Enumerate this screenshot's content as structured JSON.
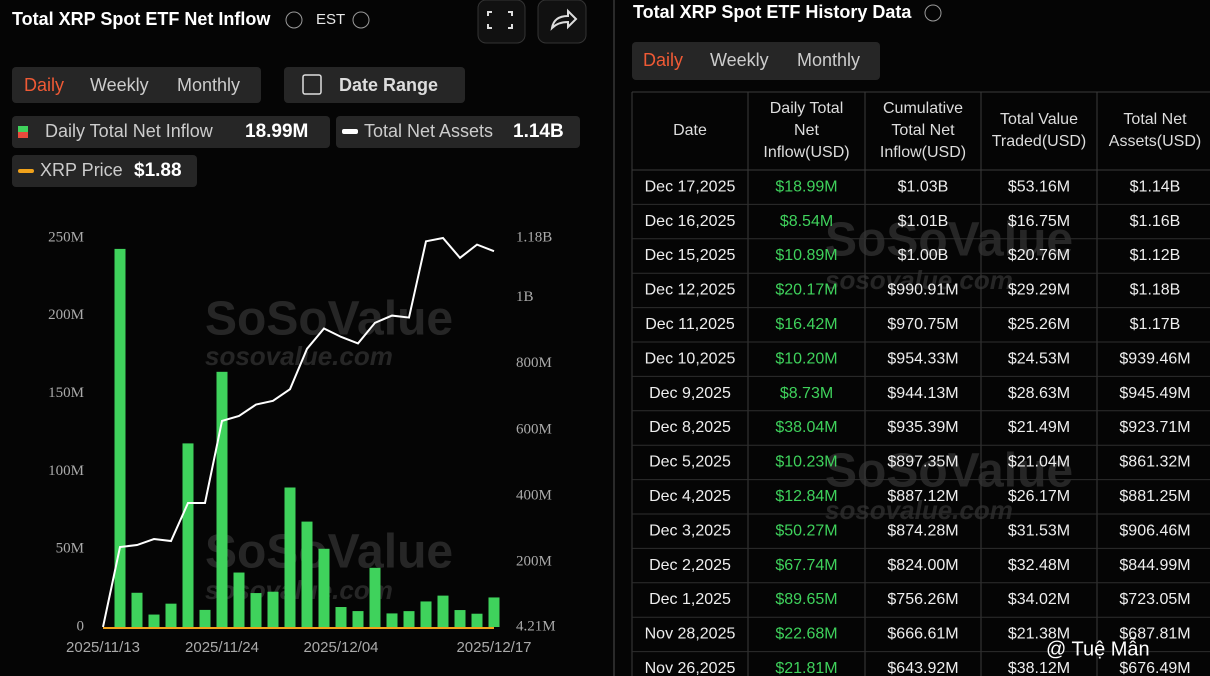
{
  "header": {
    "title": "Total XRP Spot ETF Net Inflow",
    "timezone": "EST",
    "tabs": [
      "Daily",
      "Weekly",
      "Monthly"
    ],
    "date_range": "Date Range"
  },
  "chart_data": {
    "type": "bar",
    "categories": [
      "2025/11/13",
      null,
      null,
      null,
      null,
      null,
      null,
      "2025/11/24",
      null,
      null,
      null,
      null,
      null,
      null,
      "2025/12/04",
      null,
      null,
      null,
      null,
      null,
      null,
      null,
      null,
      "2025/12/17"
    ],
    "series": [
      {
        "name": "Daily Total Net Inflow",
        "latest": "18.99M",
        "color": "#3fd25c",
        "values": [
          0,
          243,
          22,
          8,
          15,
          118,
          11,
          164,
          35,
          21.81,
          22.68,
          89.65,
          67.74,
          50.27,
          12.84,
          10.23,
          38.04,
          8.73,
          10.2,
          16.42,
          20.17,
          10.89,
          8.54,
          18.99
        ]
      },
      {
        "name": "Total Net Assets",
        "latest": "1.14B",
        "color": "#ffffff",
        "axis": "y2",
        "type": "line",
        "values": [
          4.21,
          246,
          252,
          270,
          264,
          379,
          379,
          627,
          642,
          676.49,
          687.81,
          723.05,
          844.99,
          906.46,
          881.25,
          861.32,
          923.71,
          945.49,
          939.46,
          1170,
          1180,
          1120,
          1160,
          1140
        ]
      }
    ],
    "extra_legend": {
      "name": "XRP Price",
      "latest": "$1.88",
      "color": "#f0a21b"
    },
    "ylim": [
      0,
      250
    ],
    "yticks": [
      0,
      {
        "value": 50,
        "label": "50M"
      },
      {
        "value": 100,
        "label": "100M"
      },
      {
        "value": 150,
        "label": "150M"
      },
      {
        "value": 200,
        "label": "200M"
      },
      {
        "value": 250,
        "label": "250M"
      }
    ],
    "y2lim": [
      4.21,
      1180
    ],
    "y2ticks": [
      {
        "value": 4.21,
        "label": "4.21M"
      },
      {
        "value": 200,
        "label": "200M"
      },
      {
        "value": 400,
        "label": "400M"
      },
      {
        "value": 600,
        "label": "600M"
      },
      {
        "value": 800,
        "label": "800M"
      },
      {
        "value": 1000,
        "label": "1B"
      },
      {
        "value": 1180,
        "label": "1.18B"
      }
    ],
    "grid": false
  },
  "table": {
    "title": "Total XRP Spot ETF History Data",
    "tabs": [
      "Daily",
      "Weekly",
      "Monthly"
    ],
    "columns": [
      [
        "Date"
      ],
      [
        "Daily Total",
        "Net",
        "Inflow(USD)"
      ],
      [
        "Cumulative",
        "Total Net",
        "Inflow(USD)"
      ],
      [
        "Total Value",
        "Traded(USD)"
      ],
      [
        "Total Net",
        "Assets(USD)"
      ]
    ],
    "rows": [
      [
        "Dec 17,2025",
        "$18.99M",
        "$1.03B",
        "$53.16M",
        "$1.14B"
      ],
      [
        "Dec 16,2025",
        "$8.54M",
        "$1.01B",
        "$16.75M",
        "$1.16B"
      ],
      [
        "Dec 15,2025",
        "$10.89M",
        "$1.00B",
        "$20.76M",
        "$1.12B"
      ],
      [
        "Dec 12,2025",
        "$20.17M",
        "$990.91M",
        "$29.29M",
        "$1.18B"
      ],
      [
        "Dec 11,2025",
        "$16.42M",
        "$970.75M",
        "$25.26M",
        "$1.17B"
      ],
      [
        "Dec 10,2025",
        "$10.20M",
        "$954.33M",
        "$24.53M",
        "$939.46M"
      ],
      [
        "Dec 9,2025",
        "$8.73M",
        "$944.13M",
        "$28.63M",
        "$945.49M"
      ],
      [
        "Dec 8,2025",
        "$38.04M",
        "$935.39M",
        "$21.49M",
        "$923.71M"
      ],
      [
        "Dec 5,2025",
        "$10.23M",
        "$897.35M",
        "$21.04M",
        "$861.32M"
      ],
      [
        "Dec 4,2025",
        "$12.84M",
        "$887.12M",
        "$26.17M",
        "$881.25M"
      ],
      [
        "Dec 3,2025",
        "$50.27M",
        "$874.28M",
        "$31.53M",
        "$906.46M"
      ],
      [
        "Dec 2,2025",
        "$67.74M",
        "$824.00M",
        "$32.48M",
        "$844.99M"
      ],
      [
        "Dec 1,2025",
        "$89.65M",
        "$756.26M",
        "$34.02M",
        "$723.05M"
      ],
      [
        "Nov 28,2025",
        "$22.68M",
        "$666.61M",
        "$21.38M",
        "$687.81M"
      ],
      [
        "Nov 26,2025",
        "$21.81M",
        "$643.92M",
        "$38.12M",
        "$676.49M"
      ]
    ]
  },
  "watermark": "SoSoValue",
  "watermark_url": "sosovalue.com",
  "credit": "@ Tuệ Mẫn"
}
